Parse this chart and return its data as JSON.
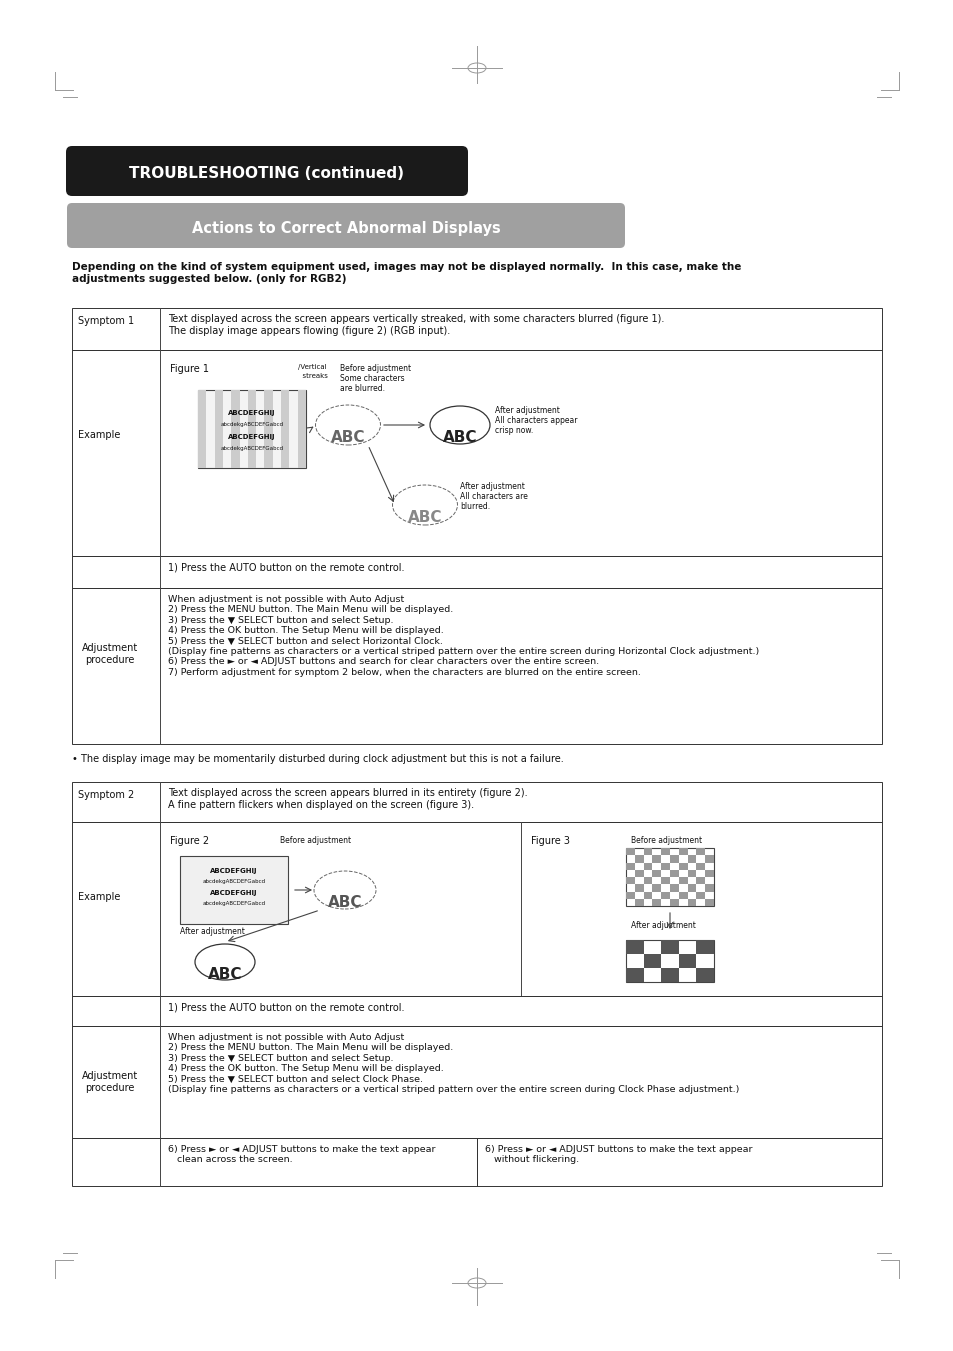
{
  "bg_color": "#ffffff",
  "title_banner": "TROUBLESHOOTING (continued)",
  "subtitle_banner": "Actions to Correct Abnormal Displays",
  "intro_text": "Depending on the kind of system equipment used, images may not be displayed normally.  In this case, make the\nadjustments suggested below. (only for RGB2)",
  "symptom1_label": "Symptom 1",
  "symptom1_text": "Text displayed across the screen appears vertically streaked, with some characters blurred (figure 1).\nThe display image appears flowing (figure 2) (RGB input).",
  "example_label": "Example",
  "adj_proc_label": "Adjustment\nprocedure",
  "adj_proc_step1": "1) Press the AUTO button on the remote control.",
  "adj_proc_steps": "When adjustment is not possible with Auto Adjust\n2) Press the MENU button. The Main Menu will be displayed.\n3) Press the ▼ SELECT button and select Setup.\n4) Press the OK button. The Setup Menu will be displayed.\n5) Press the ▼ SELECT button and select Horizontal Clock.\n(Display fine patterns as characters or a vertical striped pattern over the entire screen during Horizontal Clock adjustment.)\n6) Press the ► or ◄ ADJUST buttons and search for clear characters over the entire screen.\n7) Perform adjustment for symptom 2 below, when the characters are blurred on the entire screen.",
  "bullet_note": "• The display image may be momentarily disturbed during clock adjustment but this is not a failure.",
  "symptom2_label": "Symptom 2",
  "symptom2_text": "Text displayed across the screen appears blurred in its entirety (figure 2).\nA fine pattern flickers when displayed on the screen (figure 3).",
  "adj_proc2_label": "Adjustment\nprocedure",
  "adj_proc2_step1": "1) Press the AUTO button on the remote control.",
  "adj_proc2_steps": "When adjustment is not possible with Auto Adjust\n2) Press the MENU button. The Main Menu will be displayed.\n3) Press the ▼ SELECT button and select Setup.\n4) Press the OK button. The Setup Menu will be displayed.\n5) Press the ▼ SELECT button and select Clock Phase.\n(Display fine patterns as characters or a vertical striped pattern over the entire screen during Clock Phase adjustment.)",
  "adj_proc2_step6a": "6) Press ► or ◄ ADJUST buttons to make the text appear\n   clean across the screen.",
  "adj_proc2_step6b": "6) Press ► or ◄ ADJUST buttons to make the text appear\n   without flickering."
}
